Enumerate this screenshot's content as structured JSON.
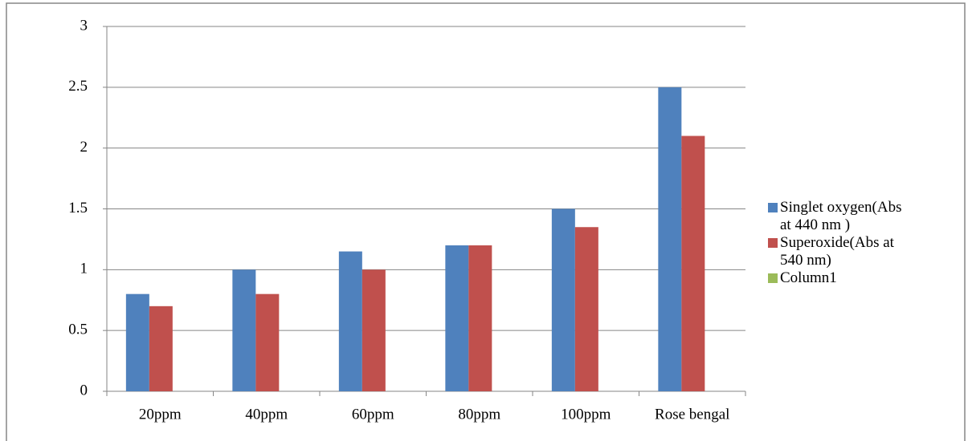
{
  "chart_data": {
    "type": "bar",
    "categories": [
      "20ppm",
      "40ppm",
      "60ppm",
      "80ppm",
      "100ppm",
      "Rose bengal"
    ],
    "series": [
      {
        "name": "Singlet oxygen(Abs at 440 nm )",
        "color": "#4f81bd",
        "values": [
          0.8,
          1.0,
          1.15,
          1.2,
          1.5,
          2.5
        ]
      },
      {
        "name": "Superoxide(Abs at 540 nm)",
        "color": "#c0504d",
        "values": [
          0.7,
          0.8,
          1.0,
          1.2,
          1.35,
          2.1
        ]
      },
      {
        "name": "Column1",
        "color": "#9bbb59",
        "values": [
          null,
          null,
          null,
          null,
          null,
          null
        ]
      }
    ],
    "ylim": [
      0,
      3
    ],
    "yticks": [
      0,
      0.5,
      1,
      1.5,
      2,
      2.5,
      3
    ],
    "grid": true,
    "legend": "right"
  }
}
